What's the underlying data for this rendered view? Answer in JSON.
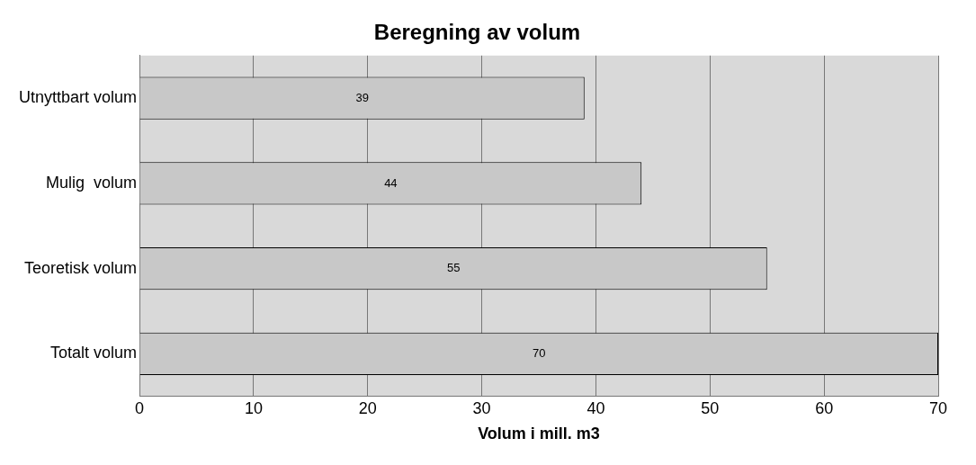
{
  "chart_data": {
    "type": "bar",
    "orientation": "horizontal",
    "title": "Beregning av volum",
    "xlabel": "Volum i mill. m3",
    "categories": [
      "Utnyttbart volum",
      "Mulig  volum",
      "Teoretisk volum",
      "Totalt volum"
    ],
    "values": [
      39,
      44,
      55,
      70
    ],
    "color": "#c8c8c8",
    "xlim": [
      0,
      70
    ],
    "xticks": [
      0,
      10,
      20,
      30,
      40,
      50,
      60,
      70
    ],
    "grid": "x",
    "data_labels": true
  }
}
